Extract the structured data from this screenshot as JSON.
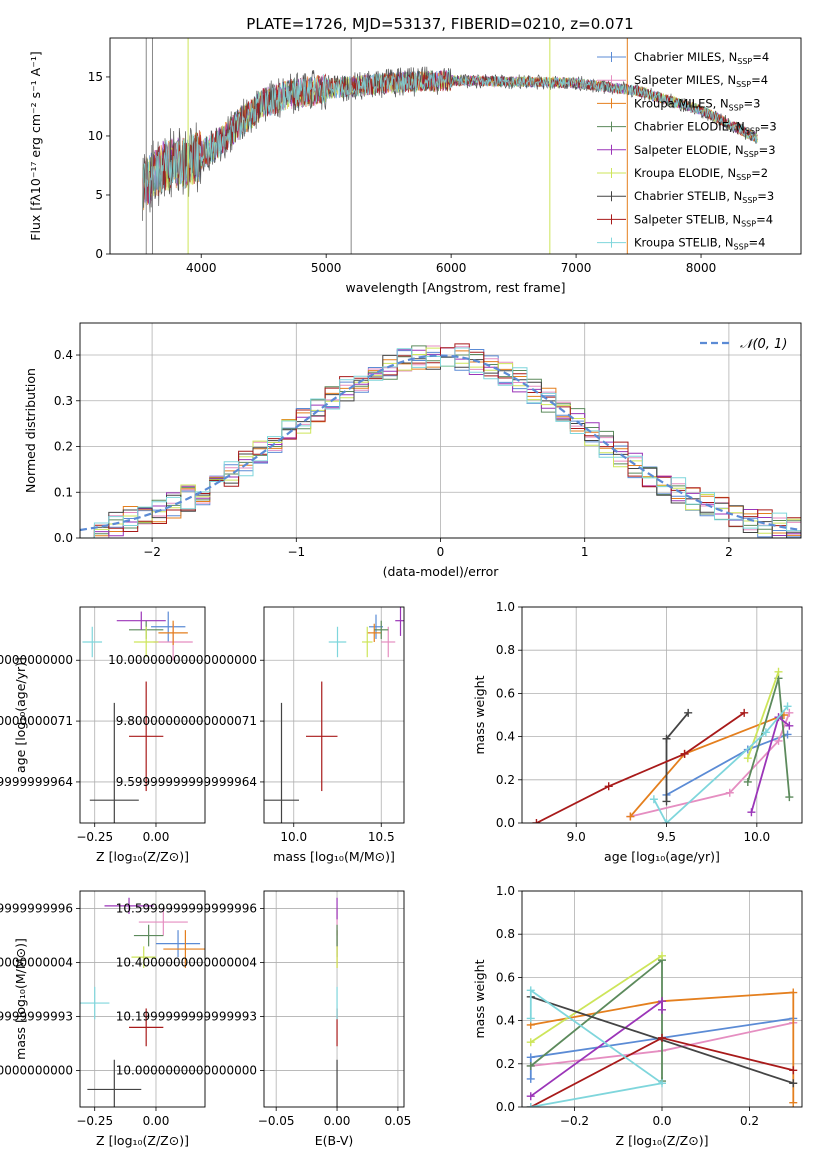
{
  "figure": {
    "title": "PLATE=1726, MJD=53137, FIBERID=0210, z=0.071"
  },
  "models": [
    {
      "label": "Chabrier MILES, N",
      "sub": "SSP",
      "tail": "=4",
      "color": "#5b8bd5"
    },
    {
      "label": "Salpeter MILES, N",
      "sub": "SSP",
      "tail": "=4",
      "color": "#e58ec1"
    },
    {
      "label": "Kroupa MILES, N",
      "sub": "SSP",
      "tail": "=3",
      "color": "#e47f1e"
    },
    {
      "label": "Chabrier ELODIE, N",
      "sub": "SSP",
      "tail": "=3",
      "color": "#5c8a5c"
    },
    {
      "label": "Salpeter ELODIE, N",
      "sub": "SSP",
      "tail": "=3",
      "color": "#9b35b8"
    },
    {
      "label": "Kroupa ELODIE, N",
      "sub": "SSP",
      "tail": "=2",
      "color": "#cde55a"
    },
    {
      "label": "Chabrier STELIB, N",
      "sub": "SSP",
      "tail": "=3",
      "color": "#444444"
    },
    {
      "label": "Salpeter STELIB, N",
      "sub": "SSP",
      "tail": "=4",
      "color": "#a81a1a"
    },
    {
      "label": "Kroupa STELIB, N",
      "sub": "SSP",
      "tail": "=4",
      "color": "#7fd6dc"
    }
  ],
  "chart_data": [
    {
      "id": "spectrum",
      "type": "line",
      "xlabel": "wavelength [Angstrom, rest frame]",
      "ylabel": "Flux [fλ10⁻¹⁷ erg cm⁻² s⁻¹ A⁻¹]",
      "xlim": [
        3270,
        8800
      ],
      "ylim": [
        0,
        18.3
      ],
      "xticks": [
        4000,
        5000,
        6000,
        7000,
        8000
      ],
      "yticks": [
        0,
        5,
        10,
        15
      ],
      "data_wavelength_range": [
        3530,
        8450
      ],
      "continuum_x": [
        3530,
        3700,
        3900,
        4100,
        4300,
        4500,
        4700,
        5000,
        5500,
        6000,
        6500,
        7000,
        7500,
        8000,
        8450
      ],
      "continuum_y": [
        5.8,
        7.5,
        7.8,
        9.0,
        11.0,
        12.8,
        13.5,
        14.0,
        14.5,
        14.7,
        14.6,
        14.5,
        13.8,
        12.2,
        9.8
      ]
    },
    {
      "id": "residuals",
      "type": "bar",
      "xlabel": "(data-model)/error",
      "ylabel": "Normed distribution",
      "xlim": [
        -2.5,
        2.5
      ],
      "ylim": [
        0,
        0.47
      ],
      "xticks": [
        -2,
        -1,
        0,
        1,
        2
      ],
      "yticks": [
        0.0,
        0.1,
        0.2,
        0.3,
        0.4
      ],
      "legend": "𝒩(0, 1)",
      "legend_placement": "top-right",
      "bin_width": 0.1
    },
    {
      "id": "age-vs-Z",
      "type": "scatter",
      "xlabel": "Z [log₁₀(Z/Z⊙)]",
      "ylabel": "age  [log₁₀(age/yr)]",
      "xlim": [
        -0.31,
        0.2
      ],
      "ylim": [
        9.465,
        10.175
      ],
      "xticks": [
        -0.25,
        0.0
      ],
      "yticks": [
        9.6,
        9.8,
        10.0
      ],
      "points": [
        {
          "x": 0.05,
          "y": 10.11,
          "xerr": 0.07,
          "yerr": 0.05
        },
        {
          "x": 0.07,
          "y": 10.06,
          "xerr": 0.08,
          "yerr": 0.06
        },
        {
          "x": 0.07,
          "y": 10.09,
          "xerr": 0.06,
          "yerr": 0.04
        },
        {
          "x": -0.04,
          "y": 10.1,
          "xerr": 0.07,
          "yerr": 0.03
        },
        {
          "x": -0.06,
          "y": 10.13,
          "xerr": 0.1,
          "yerr": 0.03
        },
        {
          "x": -0.04,
          "y": 10.06,
          "xerr": 0.05,
          "yerr": 0.05
        },
        {
          "x": -0.17,
          "y": 9.54,
          "xerr": 0.1,
          "yerr": 0.32
        },
        {
          "x": -0.04,
          "y": 9.75,
          "xerr": 0.07,
          "yerr": 0.18
        },
        {
          "x": -0.26,
          "y": 10.06,
          "xerr": 0.04,
          "yerr": 0.05
        }
      ]
    },
    {
      "id": "age-vs-mass",
      "type": "scatter",
      "xlabel": "mass [log₁₀(M/M⊙)]",
      "ylabel": "",
      "xlim": [
        9.83,
        10.63
      ],
      "ylim": [
        9.465,
        10.175
      ],
      "xticks": [
        10.0,
        10.5
      ],
      "yticks": [
        9.6,
        9.8,
        10.0
      ],
      "points": [
        {
          "x": 10.47,
          "y": 10.11,
          "xerr": 0.04,
          "yerr": 0.04
        },
        {
          "x": 10.54,
          "y": 10.06,
          "xerr": 0.04,
          "yerr": 0.05
        },
        {
          "x": 10.46,
          "y": 10.09,
          "xerr": 0.04,
          "yerr": 0.03
        },
        {
          "x": 10.5,
          "y": 10.1,
          "xerr": 0.04,
          "yerr": 0.03
        },
        {
          "x": 10.61,
          "y": 10.13,
          "xerr": 0.03,
          "yerr": 0.05
        },
        {
          "x": 10.42,
          "y": 10.06,
          "xerr": 0.03,
          "yerr": 0.05
        },
        {
          "x": 9.93,
          "y": 9.54,
          "xerr": 0.1,
          "yerr": 0.32
        },
        {
          "x": 10.16,
          "y": 9.75,
          "xerr": 0.09,
          "yerr": 0.18
        },
        {
          "x": 10.25,
          "y": 10.06,
          "xerr": 0.05,
          "yerr": 0.05
        }
      ]
    },
    {
      "id": "mass-weight-vs-age",
      "type": "line",
      "xlabel": "age  [log₁₀(age/yr)]",
      "ylabel": "mass weight",
      "xlim": [
        8.7,
        10.25
      ],
      "ylim": [
        0,
        1
      ],
      "xticks": [
        9.0,
        9.5,
        10.0
      ],
      "yticks": [
        0.0,
        0.2,
        0.4,
        0.6,
        0.8,
        1.0
      ],
      "series": [
        {
          "x": [
            9.5,
            9.95,
            10.17
          ],
          "y": [
            0.13,
            0.34,
            0.41
          ]
        },
        {
          "x": [
            9.3,
            9.85,
            10.12,
            10.18
          ],
          "y": [
            0.03,
            0.14,
            0.38,
            0.51
          ]
        },
        {
          "x": [
            9.3,
            9.6,
            10.15
          ],
          "y": [
            0.03,
            0.32,
            0.5
          ]
        },
        {
          "x": [
            9.95,
            10.12,
            10.18
          ],
          "y": [
            0.19,
            0.67,
            0.12
          ]
        },
        {
          "x": [
            9.97,
            10.12,
            10.18
          ],
          "y": [
            0.05,
            0.49,
            0.45
          ]
        },
        {
          "x": [
            9.95,
            10.12
          ],
          "y": [
            0.3,
            0.7
          ]
        },
        {
          "x": [
            9.5,
            9.5,
            9.62
          ],
          "y": [
            0.1,
            0.39,
            0.51
          ]
        },
        {
          "x": [
            8.78,
            9.18,
            9.6,
            9.93
          ],
          "y": [
            0.0,
            0.17,
            0.32,
            0.51
          ]
        },
        {
          "x": [
            9.43,
            9.5,
            10.05,
            10.17
          ],
          "y": [
            0.11,
            0.0,
            0.42,
            0.54
          ]
        }
      ]
    },
    {
      "id": "mass-vs-Z",
      "type": "scatter",
      "xlabel": "Z [log₁₀(Z/Z⊙)]",
      "ylabel": "mass [log₁₀(M/M⊙)]",
      "xlim": [
        -0.31,
        0.2
      ],
      "ylim": [
        9.865,
        10.665
      ],
      "xticks": [
        -0.25,
        0.0
      ],
      "yticks": [
        10.0,
        10.2,
        10.4,
        10.6
      ],
      "points": [
        {
          "x": 0.09,
          "y": 10.47,
          "xerr": 0.09,
          "yerr": 0.05
        },
        {
          "x": 0.03,
          "y": 10.55,
          "xerr": 0.1,
          "yerr": 0.05
        },
        {
          "x": 0.12,
          "y": 10.45,
          "xerr": 0.09,
          "yerr": 0.07
        },
        {
          "x": -0.03,
          "y": 10.5,
          "xerr": 0.06,
          "yerr": 0.04
        },
        {
          "x": -0.11,
          "y": 10.61,
          "xerr": 0.1,
          "yerr": 0.03
        },
        {
          "x": -0.05,
          "y": 10.42,
          "xerr": 0.05,
          "yerr": 0.04
        },
        {
          "x": -0.17,
          "y": 9.93,
          "xerr": 0.11,
          "yerr": 0.11
        },
        {
          "x": -0.04,
          "y": 10.16,
          "xerr": 0.07,
          "yerr": 0.07
        },
        {
          "x": -0.25,
          "y": 10.25,
          "xerr": 0.06,
          "yerr": 0.06
        }
      ]
    },
    {
      "id": "mass-vs-EBV",
      "type": "scatter",
      "xlabel": "E(B-V)",
      "ylabel": "",
      "xlim": [
        -0.06,
        0.055
      ],
      "ylim": [
        9.865,
        10.665
      ],
      "xticks": [
        -0.05,
        0.0,
        0.05
      ],
      "yticks": [
        10.0,
        10.2,
        10.4,
        10.6
      ],
      "points": [
        {
          "x": 0,
          "y": 10.47,
          "xerr": 0,
          "yerr": 0.05
        },
        {
          "x": 0,
          "y": 10.55,
          "xerr": 0,
          "yerr": 0.05
        },
        {
          "x": 0,
          "y": 10.45,
          "xerr": 0,
          "yerr": 0.07
        },
        {
          "x": 0,
          "y": 10.5,
          "xerr": 0,
          "yerr": 0.04
        },
        {
          "x": 0,
          "y": 10.6,
          "xerr": 0,
          "yerr": 0.04
        },
        {
          "x": 0,
          "y": 10.42,
          "xerr": 0,
          "yerr": 0.04
        },
        {
          "x": 0,
          "y": 9.93,
          "xerr": 0,
          "yerr": 0.11
        },
        {
          "x": 0,
          "y": 10.16,
          "xerr": 0,
          "yerr": 0.07
        },
        {
          "x": 0,
          "y": 10.25,
          "xerr": 0,
          "yerr": 0.06
        }
      ]
    },
    {
      "id": "mass-weight-vs-Z",
      "type": "line",
      "xlabel": "Z [log₁₀(Z/Z⊙)]",
      "ylabel": "mass weight",
      "xlim": [
        -0.32,
        0.32
      ],
      "ylim": [
        0,
        1
      ],
      "xticks": [
        -0.2,
        0.0,
        0.2
      ],
      "yticks": [
        0.0,
        0.2,
        0.4,
        0.6,
        0.8,
        1.0
      ],
      "series": [
        {
          "x": [
            -0.3,
            -0.3,
            0.0,
            0.3
          ],
          "y": [
            0.13,
            0.23,
            0.32,
            0.41
          ]
        },
        {
          "x": [
            -0.3,
            0.0,
            0.3
          ],
          "y": [
            0.19,
            0.26,
            0.39
          ]
        },
        {
          "x": [
            -0.3,
            0.0,
            0.3,
            0.3
          ],
          "y": [
            0.38,
            0.49,
            0.53,
            0.02
          ]
        },
        {
          "x": [
            -0.3,
            0.0,
            0.0
          ],
          "y": [
            0.19,
            0.68,
            0.12
          ]
        },
        {
          "x": [
            -0.3,
            0.0,
            0.0
          ],
          "y": [
            0.05,
            0.49,
            0.45
          ]
        },
        {
          "x": [
            -0.3,
            0.0
          ],
          "y": [
            0.3,
            0.7
          ]
        },
        {
          "x": [
            -0.3,
            0.3
          ],
          "y": [
            0.51,
            0.11
          ]
        },
        {
          "x": [
            -0.3,
            0.0,
            0.3
          ],
          "y": [
            0.0,
            0.32,
            0.17
          ]
        },
        {
          "x": [
            -0.3,
            0.0,
            -0.3,
            -0.3
          ],
          "y": [
            0.0,
            0.11,
            0.54,
            0.41
          ]
        }
      ]
    }
  ]
}
